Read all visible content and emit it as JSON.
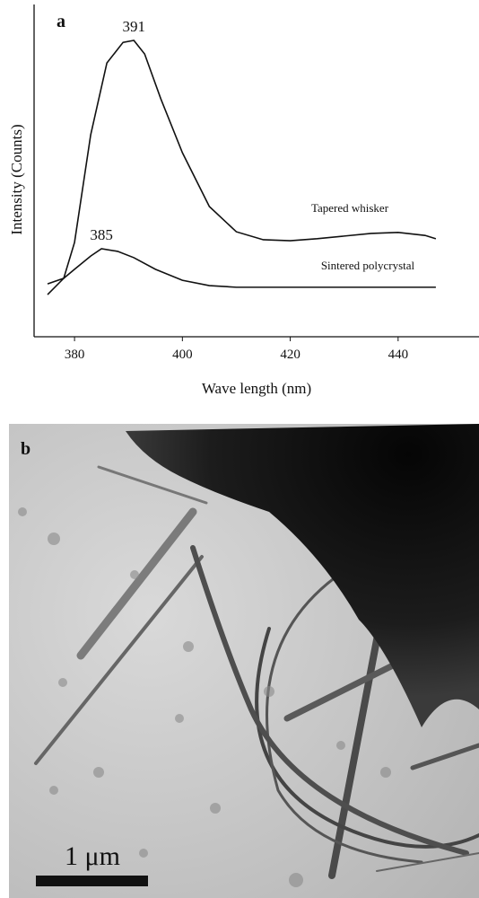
{
  "chart_data": {
    "type": "line",
    "panel_label": "a",
    "xlabel": "Wave length (nm)",
    "ylabel": "Intensity (Counts)",
    "xlim": [
      372.5,
      455
    ],
    "xticks": [
      380,
      400,
      420,
      440
    ],
    "ylim": [
      0,
      100
    ],
    "series": [
      {
        "name": "Tapered whisker",
        "color": "#111111",
        "peak_label": "391",
        "x": [
          375,
          378,
          380,
          383,
          386,
          389,
          391,
          393,
          396,
          400,
          405,
          410,
          415,
          420,
          425,
          430,
          435,
          440,
          445,
          447
        ],
        "values": [
          12.7,
          17.6,
          28.4,
          60.8,
          82.4,
          88.6,
          89.2,
          85.1,
          71.6,
          55.4,
          39.2,
          31.6,
          29.2,
          28.9,
          29.5,
          30.3,
          31.1,
          31.4,
          30.5,
          29.5
        ]
      },
      {
        "name": "Sintered polycrystal",
        "color": "#111111",
        "peak_label": "385",
        "x": [
          375,
          378,
          380,
          383,
          385,
          388,
          391,
          395,
          400,
          405,
          410,
          420,
          430,
          440,
          447
        ],
        "values": [
          15.9,
          17.6,
          20.3,
          24.3,
          26.5,
          25.7,
          23.8,
          20.3,
          17.0,
          15.4,
          14.9,
          14.9,
          14.9,
          14.9,
          14.9
        ]
      }
    ]
  },
  "image_panel": {
    "label": "b",
    "scale_bar": "1 μm"
  }
}
